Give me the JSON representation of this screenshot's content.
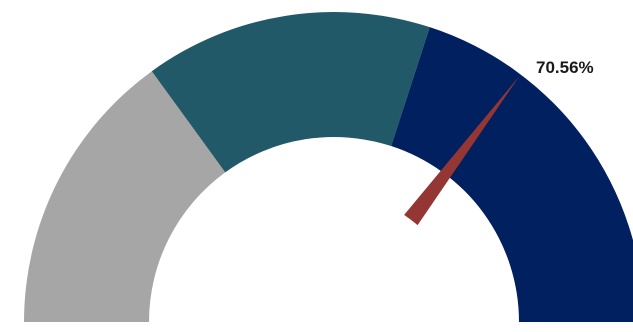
{
  "chart_data": {
    "type": "gauge",
    "title": "",
    "value": 0.7056,
    "value_label": "70.56%",
    "range": [
      0,
      1
    ],
    "bands": [
      {
        "from": 0.0,
        "to": 0.3,
        "color": "#a6a6a6"
      },
      {
        "from": 0.3,
        "to": 0.6,
        "color": "#215968"
      },
      {
        "from": 0.6,
        "to": 1.0,
        "color": "#002060"
      }
    ],
    "needle_color": "#943634"
  }
}
